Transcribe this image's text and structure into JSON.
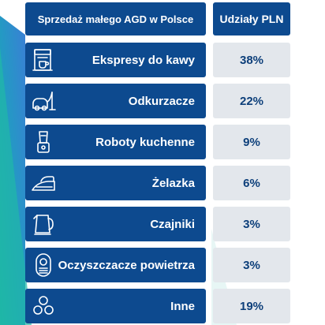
{
  "header": {
    "category_title": "Sprzedaż małego AGD w Polsce",
    "value_title": "Udziały PLN"
  },
  "colors": {
    "label_bg": "#0d4a8f",
    "value_bg": "#e3e7ec",
    "value_text": "#0d3f7a",
    "wedge_teal": "#1fb3a4",
    "wedge_blue": "#2f7fd1"
  },
  "chart_data": {
    "type": "table",
    "columns": [
      "Sprzedaż małego AGD w Polsce",
      "Udziały PLN"
    ],
    "categories": [
      "Ekspresy do kawy",
      "Odkurzacze",
      "Roboty kuchenne",
      "Żelazka",
      "Czajniki",
      "Oczyszczacze powietrza",
      "Inne"
    ],
    "values": [
      38,
      22,
      9,
      6,
      3,
      3,
      19
    ],
    "value_labels": [
      "38%",
      "22%",
      "9%",
      "6%",
      "3%",
      "3%",
      "19%"
    ],
    "icons": [
      "coffee-machine-icon",
      "vacuum-cleaner-icon",
      "food-processor-icon",
      "iron-icon",
      "kettle-icon",
      "air-purifier-icon",
      "other-circles-icon"
    ]
  }
}
